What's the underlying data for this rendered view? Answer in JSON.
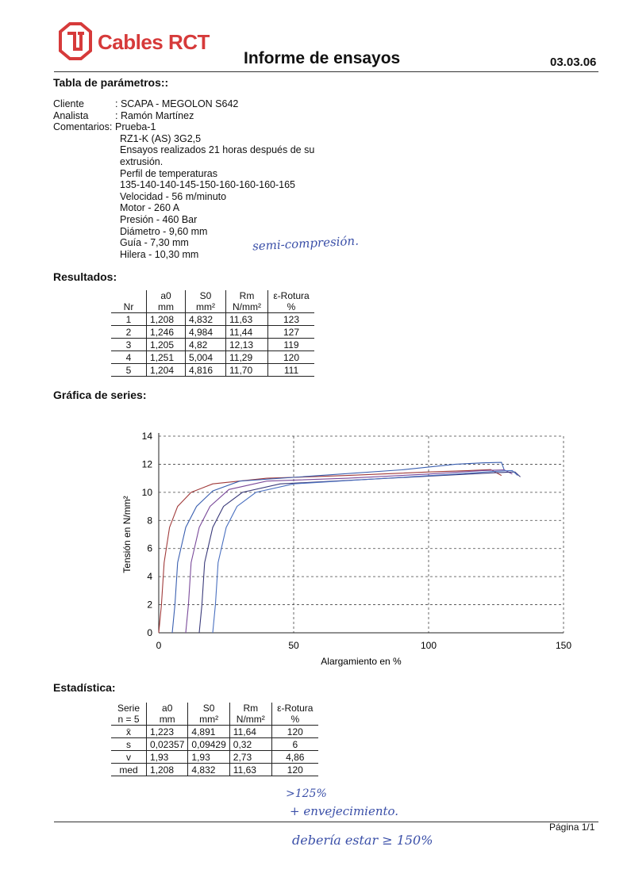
{
  "header": {
    "logo_text": "Cables RCT",
    "title": "Informe de ensayos",
    "date": "03.03.06",
    "brand_color": "#d63a3a"
  },
  "params": {
    "heading": "Tabla de parámetros::",
    "client_label": "Cliente",
    "client_value": ": SCAPA - MEGOLON S642",
    "analyst_label": "Analista",
    "analyst_value": ": Ramón Martínez",
    "comments_label": "Comentarios:",
    "comments_lines": [
      "Prueba-1",
      "RZ1-K (AS) 3G2,5",
      "Ensayos realizados 21 horas después de su",
      "extrusión.",
      "Perfil de temperaturas",
      "135-140-140-145-150-160-160-160-165",
      "Velocidad - 56 m/minuto",
      "Motor - 260 A",
      "Presión - 460 Bar",
      "Diámetro - 9,60 mm",
      "Guía - 7,30 mm",
      "Hilera - 10,30 mm"
    ],
    "handwritten_note": "semi-compresión."
  },
  "results": {
    "heading": "Resultados:",
    "headers_top": [
      "",
      "a0",
      "S0",
      "Rm",
      "ε-Rotura"
    ],
    "headers_bottom": [
      "Nr",
      "mm",
      "mm²",
      "N/mm²",
      "%"
    ],
    "rows": [
      [
        "1",
        "1,208",
        "4,832",
        "11,63",
        "123"
      ],
      [
        "2",
        "1,246",
        "4,984",
        "11,44",
        "127"
      ],
      [
        "3",
        "1,205",
        "4,82",
        "12,13",
        "119"
      ],
      [
        "4",
        "1,251",
        "5,004",
        "11,29",
        "120"
      ],
      [
        "5",
        "1,204",
        "4,816",
        "11,70",
        "111"
      ]
    ]
  },
  "chart_section": {
    "heading": "Gráfica de series:"
  },
  "chart_data": {
    "type": "line",
    "xlabel": "Alargamiento en %",
    "ylabel": "Tensión en N/mm²",
    "xlim": [
      0,
      150
    ],
    "ylim": [
      0,
      14
    ],
    "xticks": [
      0,
      50,
      100,
      150
    ],
    "yticks": [
      0,
      2,
      4,
      6,
      8,
      10,
      12,
      14
    ],
    "grid": true,
    "series": [
      {
        "color": "#a03a3a",
        "points": [
          [
            0,
            0
          ],
          [
            1,
            2
          ],
          [
            2,
            5
          ],
          [
            4,
            7.5
          ],
          [
            7,
            9
          ],
          [
            12,
            10
          ],
          [
            20,
            10.6
          ],
          [
            40,
            11.0
          ],
          [
            70,
            11.2
          ],
          [
            100,
            11.45
          ],
          [
            115,
            11.55
          ],
          [
            123,
            11.62
          ],
          [
            127,
            11.2
          ]
        ]
      },
      {
        "color": "#3a5fb0",
        "points": [
          [
            5,
            0
          ],
          [
            6,
            2
          ],
          [
            7,
            5
          ],
          [
            10,
            7.5
          ],
          [
            14,
            9
          ],
          [
            20,
            10.1
          ],
          [
            30,
            10.8
          ],
          [
            60,
            11.2
          ],
          [
            90,
            11.6
          ],
          [
            110,
            12.0
          ],
          [
            120,
            12.1
          ],
          [
            127,
            12.13
          ],
          [
            128,
            11.6
          ]
        ]
      },
      {
        "color": "#7a4a9a",
        "points": [
          [
            10,
            0
          ],
          [
            11,
            2
          ],
          [
            12,
            5
          ],
          [
            15,
            7.5
          ],
          [
            19,
            9
          ],
          [
            26,
            10.2
          ],
          [
            40,
            10.8
          ],
          [
            70,
            11.0
          ],
          [
            100,
            11.3
          ],
          [
            120,
            11.55
          ],
          [
            128,
            11.6
          ],
          [
            131,
            11.3
          ]
        ]
      },
      {
        "color": "#3a3a7a",
        "points": [
          [
            15,
            0
          ],
          [
            16,
            2
          ],
          [
            17,
            5
          ],
          [
            20,
            7.5
          ],
          [
            24,
            9
          ],
          [
            31,
            10
          ],
          [
            45,
            10.6
          ],
          [
            75,
            10.9
          ],
          [
            105,
            11.2
          ],
          [
            125,
            11.4
          ],
          [
            132,
            11.45
          ],
          [
            134,
            11.1
          ]
        ]
      },
      {
        "color": "#4a70c0",
        "points": [
          [
            20,
            0
          ],
          [
            21,
            2
          ],
          [
            22,
            5
          ],
          [
            25,
            7.5
          ],
          [
            29,
            9
          ],
          [
            36,
            10
          ],
          [
            50,
            10.6
          ],
          [
            80,
            10.95
          ],
          [
            110,
            11.3
          ],
          [
            125,
            11.5
          ],
          [
            131,
            11.55
          ],
          [
            133,
            11.2
          ]
        ]
      }
    ]
  },
  "stats": {
    "heading": "Estadística:",
    "headers_top": [
      "Serie",
      "a0",
      "S0",
      "Rm",
      "ε-Rotura"
    ],
    "headers_bottom": [
      "n = 5",
      "mm",
      "mm²",
      "N/mm²",
      "%"
    ],
    "rows": [
      [
        "x̄",
        "1,223",
        "4,891",
        "11,64",
        "120"
      ],
      [
        "s",
        "0,02357",
        "0,09429",
        "0,32",
        "6"
      ],
      [
        "v",
        "1,93",
        "1,93",
        "2,73",
        "4,86"
      ],
      [
        "med",
        "1,208",
        "4,832",
        "11,63",
        "120"
      ]
    ],
    "handwritten_notes": [
      ">125%",
      "+ envejecimiento.",
      "debería estar ≥ 150%"
    ]
  },
  "footer": {
    "page": "Página 1/1"
  }
}
